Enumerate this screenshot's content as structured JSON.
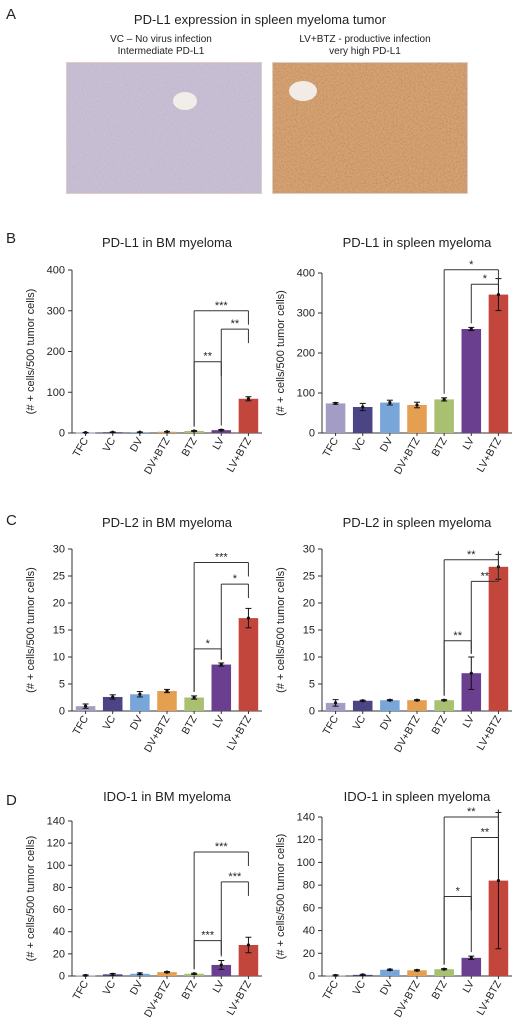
{
  "panel_a": {
    "letter": "A",
    "title": "PD-L1 expression in spleen myeloma tumor",
    "left_caption_line1": "VC – No virus infection",
    "left_caption_line2": "Intermediate PD-L1",
    "right_caption_line1": "LV+BTZ - productive infection",
    "right_caption_line2": "very high PD-L1"
  },
  "letters": {
    "b": "B",
    "c": "C",
    "d": "D"
  },
  "colors": {
    "TFC": "#a39dc6",
    "VC": "#4c4585",
    "DV": "#79a6d9",
    "DV+BTZ": "#e4a050",
    "BTZ": "#a8c070",
    "LV": "#6a3f8f",
    "LV+BTZ": "#c2463c",
    "axis": "#333333"
  },
  "chart_data": [
    {
      "type": "bar",
      "title": "PD-L1 in BM myeloma",
      "ylabel": "(# + cells/500 tumor cells)",
      "categories": [
        "TFC",
        "VC",
        "DV",
        "DV+BTZ",
        "BTZ",
        "LV",
        "LV+BTZ"
      ],
      "values": [
        1,
        2,
        2,
        3,
        5,
        7,
        84
      ],
      "errors": [
        0.5,
        0.5,
        0.5,
        0.5,
        1,
        1.5,
        5
      ],
      "ylim": [
        0,
        400
      ],
      "yticks": [
        0,
        100,
        200,
        300,
        400
      ],
      "significance": [
        {
          "from": 4,
          "to": 6,
          "label": "***",
          "y": 300
        },
        {
          "from": 5,
          "to": 6,
          "label": "**",
          "y": 255
        },
        {
          "from": 4,
          "to": 5,
          "label": "**",
          "y": 175
        }
      ]
    },
    {
      "type": "bar",
      "title": "PD-L1 in spleen myeloma",
      "ylabel": "(# + cells/500 tumor cells)",
      "categories": [
        "TFC",
        "VC",
        "DV",
        "DV+BTZ",
        "BTZ",
        "LV",
        "LV+BTZ"
      ],
      "values": [
        74,
        65,
        76,
        70,
        84,
        260,
        346
      ],
      "errors": [
        2,
        9,
        6,
        7,
        4,
        4,
        40
      ],
      "ylim": [
        0,
        400
      ],
      "yticks": [
        0,
        100,
        200,
        300,
        400
      ],
      "significance": [
        {
          "from": 4,
          "to": 6,
          "label": "*",
          "y": 408
        },
        {
          "from": 5,
          "to": 6,
          "label": "*",
          "y": 372
        }
      ]
    },
    {
      "type": "bar",
      "title": "PD-L2 in BM myeloma",
      "ylabel": "(# + cells/500 tumor cells)",
      "categories": [
        "TFC",
        "VC",
        "DV",
        "DV+BTZ",
        "BTZ",
        "LV",
        "LV+BTZ"
      ],
      "values": [
        0.9,
        2.6,
        3.1,
        3.7,
        2.5,
        8.6,
        17.2
      ],
      "errors": [
        0.4,
        0.4,
        0.5,
        0.3,
        0.3,
        0.3,
        1.8
      ],
      "ylim": [
        0,
        30
      ],
      "yticks": [
        0,
        5,
        10,
        15,
        20,
        25,
        30
      ],
      "significance": [
        {
          "from": 4,
          "to": 6,
          "label": "***",
          "y": 27.5
        },
        {
          "from": 5,
          "to": 6,
          "label": "*",
          "y": 23.5
        },
        {
          "from": 4,
          "to": 5,
          "label": "*",
          "y": 11.5
        }
      ]
    },
    {
      "type": "bar",
      "title": "PD-L2 in spleen myeloma",
      "ylabel": "(# + cells/500 tumor cells)",
      "categories": [
        "TFC",
        "VC",
        "DV",
        "DV+BTZ",
        "BTZ",
        "LV",
        "LV+BTZ"
      ],
      "values": [
        1.5,
        1.9,
        2.0,
        2.0,
        2.0,
        7.0,
        26.7
      ],
      "errors": [
        0.6,
        0.1,
        0.1,
        0.1,
        0.1,
        3.0,
        2.3
      ],
      "ylim": [
        0,
        30
      ],
      "yticks": [
        0,
        5,
        10,
        15,
        20,
        25,
        30
      ],
      "significance": [
        {
          "from": 4,
          "to": 6,
          "label": "**",
          "y": 28
        },
        {
          "from": 5,
          "to": 6,
          "label": "**",
          "y": 24
        },
        {
          "from": 4,
          "to": 5,
          "label": "**",
          "y": 13
        }
      ]
    },
    {
      "type": "bar",
      "title": "IDO-1 in BM myeloma",
      "ylabel": "(# + cells/500 tumor cells)",
      "categories": [
        "TFC",
        "VC",
        "DV",
        "DV+BTZ",
        "BTZ",
        "LV",
        "LV+BTZ"
      ],
      "values": [
        0.5,
        1.5,
        2.0,
        3.5,
        2.0,
        10,
        28
      ],
      "errors": [
        0.5,
        0.8,
        0.8,
        0.5,
        0.5,
        4,
        7
      ],
      "ylim": [
        0,
        140
      ],
      "yticks": [
        0,
        20,
        40,
        60,
        80,
        100,
        120,
        140
      ],
      "significance": [
        {
          "from": 4,
          "to": 6,
          "label": "***",
          "y": 112
        },
        {
          "from": 5,
          "to": 6,
          "label": "***",
          "y": 85
        },
        {
          "from": 4,
          "to": 5,
          "label": "***",
          "y": 32
        }
      ]
    },
    {
      "type": "bar",
      "title": "IDO-1 in spleen myeloma",
      "ylabel": "(# + cells/500 tumor cells)",
      "categories": [
        "TFC",
        "VC",
        "DV",
        "DV+BTZ",
        "BTZ",
        "LV",
        "LV+BTZ"
      ],
      "values": [
        0.5,
        1.0,
        5.5,
        5.0,
        6.0,
        16,
        84
      ],
      "errors": [
        0.5,
        0.5,
        0.5,
        0.5,
        0.5,
        1.5,
        60
      ],
      "ylim": [
        0,
        140
      ],
      "yticks": [
        0,
        20,
        40,
        60,
        80,
        100,
        120,
        140
      ],
      "significance": [
        {
          "from": 4,
          "to": 6,
          "label": "**",
          "y": 140
        },
        {
          "from": 5,
          "to": 6,
          "label": "**",
          "y": 122
        },
        {
          "from": 4,
          "to": 5,
          "label": "*",
          "y": 70
        }
      ]
    }
  ]
}
